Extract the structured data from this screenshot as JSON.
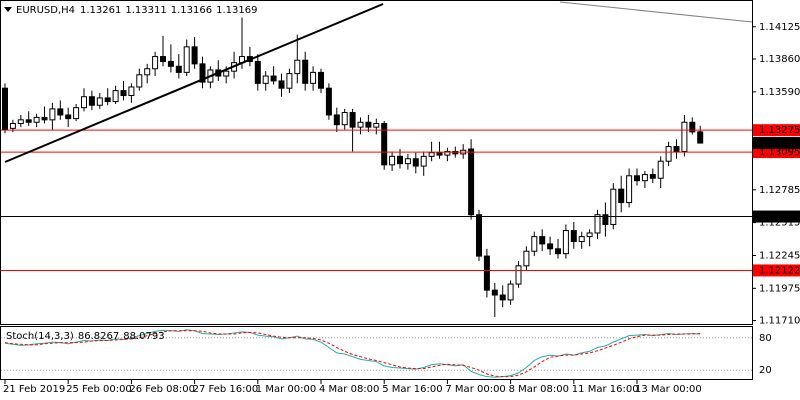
{
  "chart_data": {
    "type": "candlestick",
    "symbol": "EURUSD,H4",
    "up_color": "#ffffff",
    "down_color": "#000000",
    "outline_color": "#000000",
    "categories": [
      "21 Feb 2019",
      null,
      null,
      null,
      null,
      null,
      null,
      null,
      "25 Feb 00:00",
      null,
      null,
      null,
      null,
      null,
      null,
      null,
      "26 Feb 08:00",
      null,
      null,
      null,
      null,
      null,
      null,
      null,
      "27 Feb 16:00",
      null,
      null,
      null,
      null,
      null,
      null,
      null,
      "1 Mar 00:00",
      null,
      null,
      null,
      null,
      null,
      null,
      null,
      "4 Mar 08:00",
      null,
      null,
      null,
      null,
      null,
      null,
      null,
      "5 Mar 16:00",
      null,
      null,
      null,
      null,
      null,
      null,
      null,
      "7 Mar 00:00",
      null,
      null,
      null,
      null,
      null,
      null,
      null,
      "8 Mar 08:00",
      null,
      null,
      null,
      null,
      null,
      null,
      null,
      "11 Mar 16:00",
      null,
      null,
      null,
      null,
      null,
      null,
      null,
      "13 Mar 00:00",
      null,
      null,
      null,
      null,
      null,
      null,
      null,
      null
    ],
    "candles": [
      [
        1.1362,
        1.1366,
        1.1325,
        1.1328
      ],
      [
        1.1329,
        1.1336,
        1.1326,
        1.1333
      ],
      [
        1.1333,
        1.134,
        1.133,
        1.1336
      ],
      [
        1.1336,
        1.1343,
        1.1331,
        1.1334
      ],
      [
        1.1334,
        1.1341,
        1.133,
        1.1338
      ],
      [
        1.1338,
        1.1347,
        1.1333,
        1.1336
      ],
      [
        1.1336,
        1.135,
        1.1328,
        1.1345
      ],
      [
        1.1345,
        1.1352,
        1.1336,
        1.134
      ],
      [
        1.134,
        1.1346,
        1.133,
        1.1337
      ],
      [
        1.1337,
        1.1349,
        1.1335,
        1.1346
      ],
      [
        1.1346,
        1.1362,
        1.1343,
        1.1355
      ],
      [
        1.1355,
        1.136,
        1.1344,
        1.1348
      ],
      [
        1.1348,
        1.1358,
        1.1345,
        1.1354
      ],
      [
        1.1354,
        1.1362,
        1.1348,
        1.1351
      ],
      [
        1.1351,
        1.1364,
        1.1349,
        1.136
      ],
      [
        1.136,
        1.1368,
        1.1352,
        1.1356
      ],
      [
        1.1356,
        1.1366,
        1.135,
        1.1363
      ],
      [
        1.1363,
        1.1378,
        1.136,
        1.1373
      ],
      [
        1.1373,
        1.1382,
        1.1366,
        1.1378
      ],
      [
        1.1378,
        1.1392,
        1.1372,
        1.1388
      ],
      [
        1.1388,
        1.1405,
        1.138,
        1.1384
      ],
      [
        1.1384,
        1.1398,
        1.1375,
        1.138
      ],
      [
        1.138,
        1.139,
        1.137,
        1.1375
      ],
      [
        1.1375,
        1.1402,
        1.1372,
        1.1396
      ],
      [
        1.1396,
        1.1404,
        1.1378,
        1.1382
      ],
      [
        1.1382,
        1.1388,
        1.1362,
        1.1367
      ],
      [
        1.1367,
        1.138,
        1.1362,
        1.1377
      ],
      [
        1.1377,
        1.1385,
        1.1368,
        1.1372
      ],
      [
        1.1372,
        1.138,
        1.1366,
        1.1376
      ],
      [
        1.1376,
        1.1392,
        1.137,
        1.1383
      ],
      [
        1.1383,
        1.142,
        1.1378,
        1.1388
      ],
      [
        1.1388,
        1.1396,
        1.138,
        1.1384
      ],
      [
        1.1384,
        1.139,
        1.136,
        1.1366
      ],
      [
        1.1366,
        1.1376,
        1.136,
        1.1372
      ],
      [
        1.1372,
        1.138,
        1.1365,
        1.1368
      ],
      [
        1.1368,
        1.1374,
        1.1355,
        1.1362
      ],
      [
        1.1362,
        1.1378,
        1.1358,
        1.1374
      ],
      [
        1.1374,
        1.1406,
        1.1366,
        1.1385
      ],
      [
        1.1385,
        1.1392,
        1.136,
        1.1366
      ],
      [
        1.1366,
        1.138,
        1.136,
        1.1375
      ],
      [
        1.1375,
        1.1378,
        1.1358,
        1.1362
      ],
      [
        1.1362,
        1.1366,
        1.1336,
        1.134
      ],
      [
        1.134,
        1.1346,
        1.1326,
        1.1332
      ],
      [
        1.1332,
        1.1345,
        1.1328,
        1.1342
      ],
      [
        1.1342,
        1.1345,
        1.131,
        1.133
      ],
      [
        1.133,
        1.1338,
        1.1324,
        1.1334
      ],
      [
        1.1334,
        1.134,
        1.1326,
        1.133
      ],
      [
        1.133,
        1.1337,
        1.1324,
        1.1333
      ],
      [
        1.1333,
        1.1335,
        1.1295,
        1.1299
      ],
      [
        1.1299,
        1.131,
        1.1294,
        1.1306
      ],
      [
        1.1306,
        1.1312,
        1.1296,
        1.13
      ],
      [
        1.13,
        1.1308,
        1.1295,
        1.1304
      ],
      [
        1.1304,
        1.1309,
        1.1292,
        1.1298
      ],
      [
        1.1298,
        1.131,
        1.129,
        1.1306
      ],
      [
        1.1306,
        1.1318,
        1.1302,
        1.1309
      ],
      [
        1.1309,
        1.1318,
        1.1304,
        1.1307
      ],
      [
        1.1307,
        1.1313,
        1.1302,
        1.131
      ],
      [
        1.131,
        1.1314,
        1.1305,
        1.1308
      ],
      [
        1.1308,
        1.1316,
        1.1304,
        1.1311
      ],
      [
        1.1312,
        1.132,
        1.1254,
        1.1258
      ],
      [
        1.1258,
        1.1262,
        1.122,
        1.1224
      ],
      [
        1.1224,
        1.123,
        1.119,
        1.1196
      ],
      [
        1.1196,
        1.1202,
        1.1174,
        1.1192
      ],
      [
        1.1192,
        1.12,
        1.1182,
        1.1188
      ],
      [
        1.1188,
        1.1204,
        1.1184,
        1.1201
      ],
      [
        1.1201,
        1.122,
        1.1198,
        1.1216
      ],
      [
        1.1216,
        1.1232,
        1.1212,
        1.1228
      ],
      [
        1.1228,
        1.1244,
        1.1224,
        1.124
      ],
      [
        1.124,
        1.1246,
        1.1228,
        1.1234
      ],
      [
        1.1234,
        1.124,
        1.1225,
        1.123
      ],
      [
        1.123,
        1.1238,
        1.1222,
        1.1226
      ],
      [
        1.1226,
        1.125,
        1.1222,
        1.1245
      ],
      [
        1.1245,
        1.1252,
        1.123,
        1.1236
      ],
      [
        1.1236,
        1.1244,
        1.123,
        1.124
      ],
      [
        1.124,
        1.1246,
        1.1232,
        1.1243
      ],
      [
        1.1243,
        1.1262,
        1.1238,
        1.1258
      ],
      [
        1.1258,
        1.1268,
        1.124,
        1.125
      ],
      [
        1.125,
        1.1284,
        1.1246,
        1.1279
      ],
      [
        1.1279,
        1.129,
        1.126,
        1.1268
      ],
      [
        1.1268,
        1.1296,
        1.1264,
        1.129
      ],
      [
        1.129,
        1.1296,
        1.1282,
        1.1286
      ],
      [
        1.1286,
        1.1294,
        1.128,
        1.1291
      ],
      [
        1.1291,
        1.1296,
        1.1284,
        1.1288
      ],
      [
        1.1288,
        1.1306,
        1.128,
        1.1302
      ],
      [
        1.1302,
        1.1318,
        1.1298,
        1.1314
      ],
      [
        1.1314,
        1.132,
        1.1304,
        1.131
      ],
      [
        1.131,
        1.134,
        1.1306,
        1.1334
      ],
      [
        1.1334,
        1.1338,
        1.1324,
        1.13261
      ],
      [
        1.13261,
        1.13311,
        1.13166,
        1.13169
      ]
    ],
    "ylim": [
      1.1169,
      1.14345
    ],
    "yticks": [
      1.14125,
      {
        "value": 1.1386,
        "label": "1.13860"
      },
      {
        "value": 1.1359,
        "label": "1.13590"
      },
      1.12785,
      1.12515,
      1.12245,
      1.11975,
      {
        "value": 1.1171,
        "label": "1.11710"
      }
    ],
    "levels": [
      {
        "value": 1.13275,
        "color": "#ff0000"
      },
      {
        "value": 1.13095,
        "color": "#ff0000"
      },
      {
        "value": 1.12565,
        "color": "#000000"
      },
      {
        "value": 1.12122,
        "color": "#ff0000"
      }
    ],
    "indicator": {
      "type": "line",
      "name": "Stoch(14,3,3)",
      "ylim": [
        0,
        100
      ],
      "yticks": [
        80,
        20
      ],
      "series": [
        {
          "color": "#20b2aa",
          "dashed": false,
          "values": [
            70,
            68,
            66,
            67,
            69,
            70,
            72,
            71,
            69,
            72,
            75,
            74,
            76,
            75,
            78,
            77,
            80,
            84,
            88,
            92,
            94,
            93,
            92,
            95,
            93,
            88,
            87,
            86,
            87,
            89,
            91,
            90,
            85,
            83,
            82,
            78,
            80,
            83,
            78,
            77,
            72,
            62,
            52,
            50,
            45,
            40,
            38,
            36,
            28,
            25,
            24,
            23,
            22,
            25,
            30,
            32,
            30,
            28,
            30,
            18,
            12,
            8,
            7,
            8,
            10,
            15,
            25,
            38,
            45,
            48,
            46,
            50,
            48,
            52,
            55,
            62,
            65,
            72,
            78,
            84,
            85,
            86,
            84,
            86,
            88,
            86,
            87,
            88,
            86.8267
          ]
        },
        {
          "color": "#ff0000",
          "dashed": true,
          "values": [
            71,
            69,
            68,
            67,
            67,
            69,
            70,
            71,
            71,
            71,
            72,
            74,
            75,
            75,
            76,
            77,
            78,
            80,
            84,
            88,
            91,
            93,
            93,
            93,
            93,
            92,
            89,
            87,
            87,
            87,
            89,
            90,
            89,
            86,
            83,
            81,
            80,
            80,
            80,
            79,
            76,
            70,
            62,
            55,
            49,
            45,
            41,
            38,
            34,
            30,
            26,
            24,
            23,
            23,
            26,
            29,
            31,
            30,
            29,
            25,
            20,
            13,
            9,
            8,
            8,
            11,
            17,
            26,
            36,
            44,
            46,
            48,
            48,
            50,
            52,
            56,
            61,
            66,
            72,
            78,
            82,
            85,
            85,
            85,
            86,
            87,
            87,
            87,
            88.0793
          ]
        }
      ]
    }
  }
}
